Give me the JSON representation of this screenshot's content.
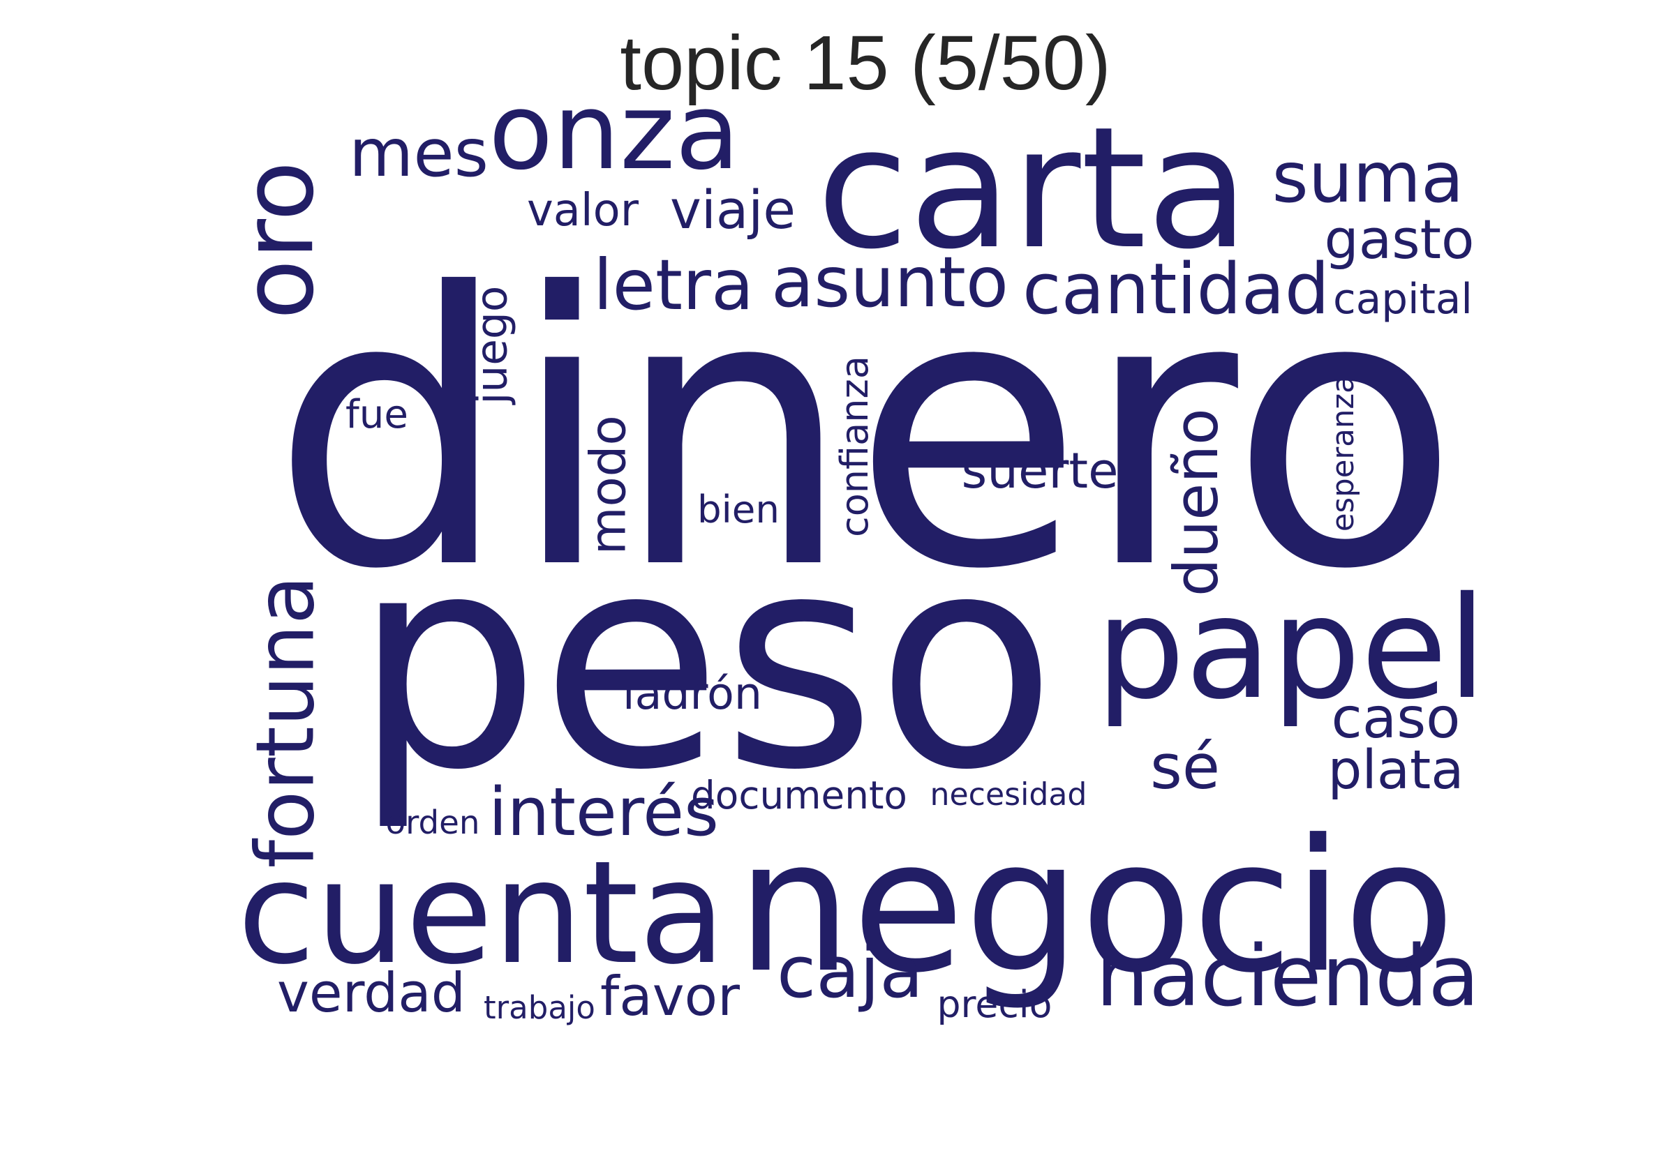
{
  "title": "topic 15 (5/50)",
  "colors": {
    "word": "#221e66",
    "title": "#262626",
    "background": "#ffffff"
  },
  "words": [
    {
      "text": "dinero",
      "rotate": false
    },
    {
      "text": "peso",
      "rotate": false
    },
    {
      "text": "carta",
      "rotate": false
    },
    {
      "text": "negocio",
      "rotate": false
    },
    {
      "text": "papel",
      "rotate": false
    },
    {
      "text": "cuenta",
      "rotate": false
    },
    {
      "text": "onza",
      "rotate": false
    },
    {
      "text": "oro",
      "rotate": true
    },
    {
      "text": "hacienda",
      "rotate": false
    },
    {
      "text": "fortuna",
      "rotate": true
    },
    {
      "text": "cantidad",
      "rotate": false
    },
    {
      "text": "suma",
      "rotate": false
    },
    {
      "text": "mes",
      "rotate": false
    },
    {
      "text": "asunto",
      "rotate": false
    },
    {
      "text": "letra",
      "rotate": false
    },
    {
      "text": "interés",
      "rotate": false
    },
    {
      "text": "caja",
      "rotate": false
    },
    {
      "text": "gasto",
      "rotate": false
    },
    {
      "text": "caso",
      "rotate": false
    },
    {
      "text": "dueño",
      "rotate": true
    },
    {
      "text": "verdad",
      "rotate": false
    },
    {
      "text": "favor",
      "rotate": false
    },
    {
      "text": "plata",
      "rotate": false
    },
    {
      "text": "viaje",
      "rotate": false
    },
    {
      "text": "juego",
      "rotate": true
    },
    {
      "text": "modo",
      "rotate": true
    },
    {
      "text": "sé",
      "rotate": false
    },
    {
      "text": "suerte",
      "rotate": false
    },
    {
      "text": "capital",
      "rotate": false
    },
    {
      "text": "ladrón",
      "rotate": false
    },
    {
      "text": "valor",
      "rotate": false
    },
    {
      "text": "documento",
      "rotate": false
    },
    {
      "text": "confianza",
      "rotate": true
    },
    {
      "text": "bien",
      "rotate": false
    },
    {
      "text": "fue",
      "rotate": false
    },
    {
      "text": "precio",
      "rotate": false
    },
    {
      "text": "necesidad",
      "rotate": false
    },
    {
      "text": "esperanza",
      "rotate": true
    },
    {
      "text": "orden",
      "rotate": false
    },
    {
      "text": "trabajo",
      "rotate": false
    }
  ]
}
